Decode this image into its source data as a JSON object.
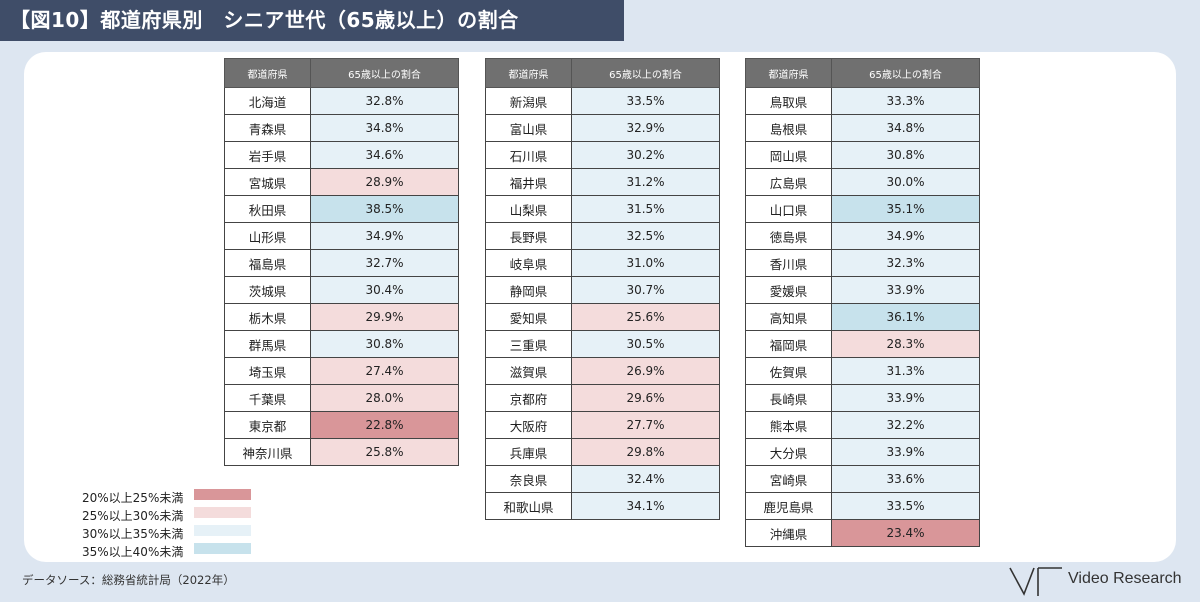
{
  "title": "【図10】都道府県別　シニア世代（65歳以上）の割合",
  "column_headers": {
    "pref": "都道府県",
    "ratio": "65歳以上の割合"
  },
  "source": "データソース：総務省統計局（2022年）",
  "logo_text": "Video Research",
  "legend_colors": {
    "20-25": "#d99699",
    "25-30": "#f4dcdc",
    "30-35": "#e6f1f7",
    "35-40": "#c7e2ec"
  },
  "chart_data": {
    "type": "table",
    "tables": [
      {
        "rows": [
          {
            "pref": "北海道",
            "value": "32.8%"
          },
          {
            "pref": "青森県",
            "value": "34.8%"
          },
          {
            "pref": "岩手県",
            "value": "34.6%"
          },
          {
            "pref": "宮城県",
            "value": "28.9%"
          },
          {
            "pref": "秋田県",
            "value": "38.5%"
          },
          {
            "pref": "山形県",
            "value": "34.9%"
          },
          {
            "pref": "福島県",
            "value": "32.7%"
          },
          {
            "pref": "茨城県",
            "value": "30.4%"
          },
          {
            "pref": "栃木県",
            "value": "29.9%"
          },
          {
            "pref": "群馬県",
            "value": "30.8%"
          },
          {
            "pref": "埼玉県",
            "value": "27.4%"
          },
          {
            "pref": "千葉県",
            "value": "28.0%"
          },
          {
            "pref": "東京都",
            "value": "22.8%"
          },
          {
            "pref": "神奈川県",
            "value": "25.8%"
          }
        ]
      },
      {
        "rows": [
          {
            "pref": "新潟県",
            "value": "33.5%"
          },
          {
            "pref": "富山県",
            "value": "32.9%"
          },
          {
            "pref": "石川県",
            "value": "30.2%"
          },
          {
            "pref": "福井県",
            "value": "31.2%"
          },
          {
            "pref": "山梨県",
            "value": "31.5%"
          },
          {
            "pref": "長野県",
            "value": "32.5%"
          },
          {
            "pref": "岐阜県",
            "value": "31.0%"
          },
          {
            "pref": "静岡県",
            "value": "30.7%"
          },
          {
            "pref": "愛知県",
            "value": "25.6%"
          },
          {
            "pref": "三重県",
            "value": "30.5%"
          },
          {
            "pref": "滋賀県",
            "value": "26.9%"
          },
          {
            "pref": "京都府",
            "value": "29.6%"
          },
          {
            "pref": "大阪府",
            "value": "27.7%"
          },
          {
            "pref": "兵庫県",
            "value": "29.8%"
          },
          {
            "pref": "奈良県",
            "value": "32.4%"
          },
          {
            "pref": "和歌山県",
            "value": "34.1%"
          }
        ]
      },
      {
        "rows": [
          {
            "pref": "鳥取県",
            "value": "33.3%"
          },
          {
            "pref": "島根県",
            "value": "34.8%"
          },
          {
            "pref": "岡山県",
            "value": "30.8%"
          },
          {
            "pref": "広島県",
            "value": "30.0%"
          },
          {
            "pref": "山口県",
            "value": "35.1%"
          },
          {
            "pref": "徳島県",
            "value": "34.9%"
          },
          {
            "pref": "香川県",
            "value": "32.3%"
          },
          {
            "pref": "愛媛県",
            "value": "33.9%"
          },
          {
            "pref": "高知県",
            "value": "36.1%"
          },
          {
            "pref": "福岡県",
            "value": "28.3%"
          },
          {
            "pref": "佐賀県",
            "value": "31.3%"
          },
          {
            "pref": "長崎県",
            "value": "33.9%"
          },
          {
            "pref": "熊本県",
            "value": "32.2%"
          },
          {
            "pref": "大分県",
            "value": "33.9%"
          },
          {
            "pref": "宮崎県",
            "value": "33.6%"
          },
          {
            "pref": "鹿児島県",
            "value": "33.5%"
          },
          {
            "pref": "沖縄県",
            "value": "23.4%"
          }
        ]
      }
    ],
    "legend": [
      {
        "label": "20%以上25%未満",
        "bin": 1
      },
      {
        "label": "25%以上30%未満",
        "bin": 2
      },
      {
        "label": "30%以上35%未満",
        "bin": 3
      },
      {
        "label": "35%以上40%未満",
        "bin": 4
      }
    ]
  }
}
